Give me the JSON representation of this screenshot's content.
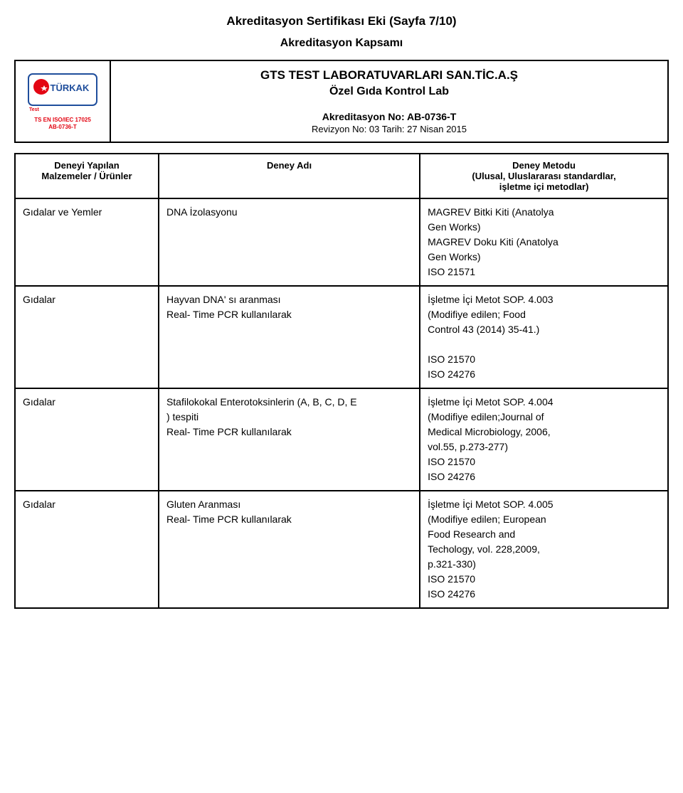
{
  "header": {
    "title": "Akreditasyon Sertifikası Eki (Sayfa 7/10)",
    "subtitle": "Akreditasyon Kapsamı"
  },
  "logo": {
    "top_text": "TÜRKAK",
    "test_label": "Test",
    "iso_line": "TS EN ISO/IEC 17025",
    "ab_no": "AB-0736-T"
  },
  "org": {
    "name": "GTS TEST LABORATUVARLARI SAN.TİC.A.Ş",
    "sub": "Özel Gıda Kontrol Lab",
    "akred_no": "Akreditasyon No: AB-0736-T",
    "revizyon": "Revizyon No: 03 Tarih: 27 Nisan 2015"
  },
  "table": {
    "headers": {
      "col1": "Deneyi Yapılan\nMalzemeler / Ürünler",
      "col2": "Deney Adı",
      "col3": "Deney Metodu\n(Ulusal, Uluslararası standardlar,\nişletme içi metodlar)"
    },
    "rows": [
      {
        "c1": "Gıdalar ve Yemler",
        "c2": "DNA İzolasyonu",
        "c3": "MAGREV Bitki Kiti (Anatolya\nGen Works)\nMAGREV Doku Kiti (Anatolya\nGen Works)\nISO 21571"
      },
      {
        "c1": "Gıdalar",
        "c2": "Hayvan DNA' sı aranması\nReal- Time PCR kullanılarak",
        "c3": "İşletme İçi Metot SOP. 4.003\n(Modifiye edilen; Food\nControl 43 (2014) 35-41.)\n\nISO 21570\nISO 24276"
      },
      {
        "c1": "Gıdalar",
        "c2": "Stafilokokal Enterotoksinlerin (A, B, C, D, E\n) tespiti\nReal- Time PCR kullanılarak",
        "c3": "İşletme İçi Metot SOP. 4.004\n(Modifiye edilen;Journal of\nMedical Microbiology, 2006,\nvol.55, p.273-277)\nISO 21570\nISO 24276"
      },
      {
        "c1": "Gıdalar",
        "c2": "Gluten Aranması\nReal- Time PCR kullanılarak",
        "c3": "İşletme İçi Metot SOP. 4.005\n(Modifiye edilen; European\nFood Research and\nTechology, vol. 228,2009,\np.321-330)\nISO 21570\nISO 24276"
      }
    ]
  },
  "colors": {
    "red": "#e30613",
    "blue": "#1f4e9c",
    "black": "#000000",
    "white": "#ffffff"
  }
}
